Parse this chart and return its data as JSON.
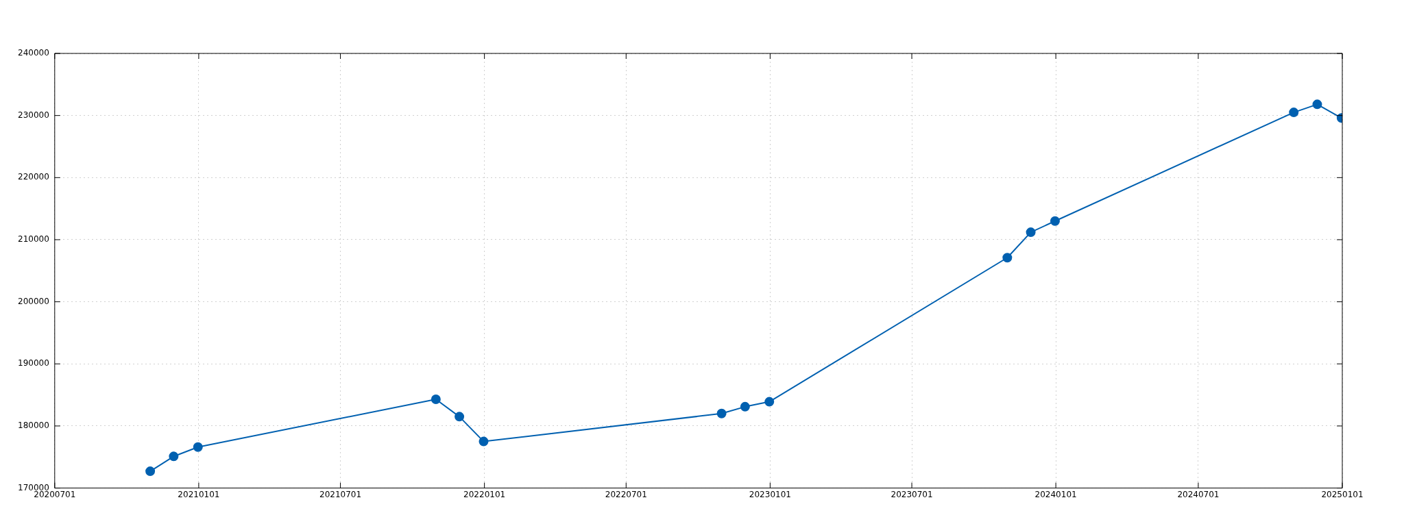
{
  "chart_data": {
    "type": "line",
    "x": [
      "2020-10-31",
      "2020-11-30",
      "2020-12-31",
      "2021-10-31",
      "2021-11-30",
      "2021-12-31",
      "2022-10-31",
      "2022-11-30",
      "2022-12-31",
      "2023-10-31",
      "2023-11-30",
      "2023-12-31",
      "2024-10-31",
      "2024-11-30",
      "2024-12-31"
    ],
    "series": [
      {
        "color": "#0060b0",
        "values": [
          172700,
          175100,
          176600,
          184300,
          181500,
          177500,
          182000,
          183100,
          183900,
          207100,
          211200,
          213000,
          230500,
          231800,
          229600
        ]
      }
    ],
    "xlim": [
      "2020-07-01",
      "2025-01-01"
    ],
    "xticks": [
      {
        "value": "2020-07-01",
        "label": "20200701"
      },
      {
        "value": "2021-01-01",
        "label": "20210101"
      },
      {
        "value": "2021-07-01",
        "label": "20210701"
      },
      {
        "value": "2022-01-01",
        "label": "20220101"
      },
      {
        "value": "2022-07-01",
        "label": "20220701"
      },
      {
        "value": "2023-01-01",
        "label": "20230101"
      },
      {
        "value": "2023-07-01",
        "label": "20230701"
      },
      {
        "value": "2024-01-01",
        "label": "20240101"
      },
      {
        "value": "2024-07-01",
        "label": "20240701"
      },
      {
        "value": "2025-01-01",
        "label": "20250101"
      }
    ],
    "ylim": [
      170000,
      240000
    ],
    "yticks": [
      170000,
      180000,
      190000,
      200000,
      210000,
      220000,
      230000,
      240000
    ],
    "grid": true,
    "marker": "circle",
    "line_style": "solid"
  }
}
